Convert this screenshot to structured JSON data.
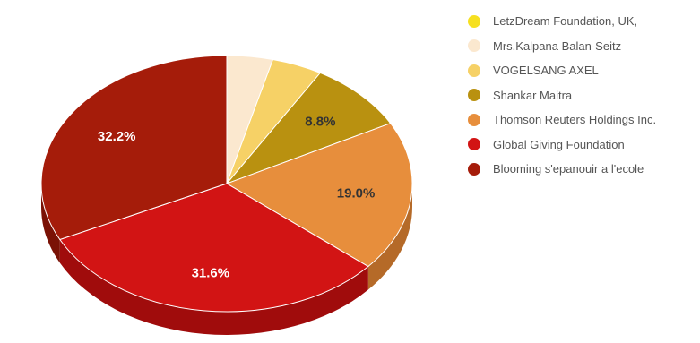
{
  "chart_data": {
    "type": "pie",
    "style": "3d",
    "categories": [
      "LetzDream Foundation, UK,",
      "Mrs.Kalpana Balan-Seitz",
      "VOGELSANG AXEL",
      "Shankar Maitra",
      "Thomson Reuters Holdings Inc.",
      "Global Giving Foundation",
      "Blooming s'epanouir a l'ecole"
    ],
    "values": [
      0.0,
      4.0,
      4.4,
      8.8,
      19.0,
      31.6,
      32.2
    ],
    "data_labels": [
      "",
      "",
      "",
      "8.8%",
      "19.0%",
      "31.6%",
      "32.2%"
    ],
    "colors": [
      "#f6e020",
      "#fbe8cf",
      "#f6d166",
      "#b99110",
      "#e78e3c",
      "#d21414",
      "#a51c0a"
    ],
    "side_colors": [
      "#c7b018",
      "#d8c0a6",
      "#c9a54a",
      "#8a6b0a",
      "#b56a28",
      "#a00c0c",
      "#7a1206"
    ],
    "label_colors": [
      "#333333",
      "#333333",
      "#333333",
      "#333333",
      "#333333",
      "#ffffff",
      "#ffffff"
    ],
    "legend_position": "right"
  }
}
